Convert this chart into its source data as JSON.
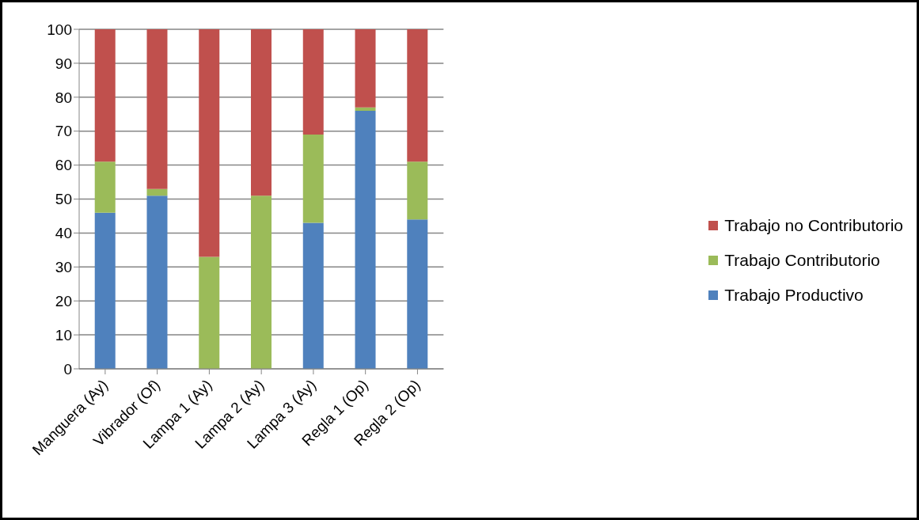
{
  "chart_data": {
    "type": "bar",
    "stacked": true,
    "categories": [
      "Manguera (Ay)",
      "Vibrador (Of)",
      "Lampa 1 (Ay)",
      "Lampa 2 (Ay)",
      "Lampa 3 (Ay)",
      "Regla 1 (Op)",
      "Regla 2 (Op)"
    ],
    "series": [
      {
        "name": "Trabajo Productivo",
        "color": "#4f81bd",
        "values": [
          46,
          51,
          0,
          0,
          43,
          76,
          44
        ]
      },
      {
        "name": "Trabajo Contributorio",
        "color": "#9bbb59",
        "values": [
          15,
          2,
          33,
          51,
          26,
          1,
          17
        ]
      },
      {
        "name": "Trabajo no Contributorio",
        "color": "#c0504d",
        "values": [
          39,
          47,
          67,
          49,
          31,
          23,
          39
        ]
      }
    ],
    "ylim": [
      0,
      100
    ],
    "yticks": [
      0,
      10,
      20,
      30,
      40,
      50,
      60,
      70,
      80,
      90,
      100
    ],
    "grid": "y",
    "legend": "right"
  }
}
